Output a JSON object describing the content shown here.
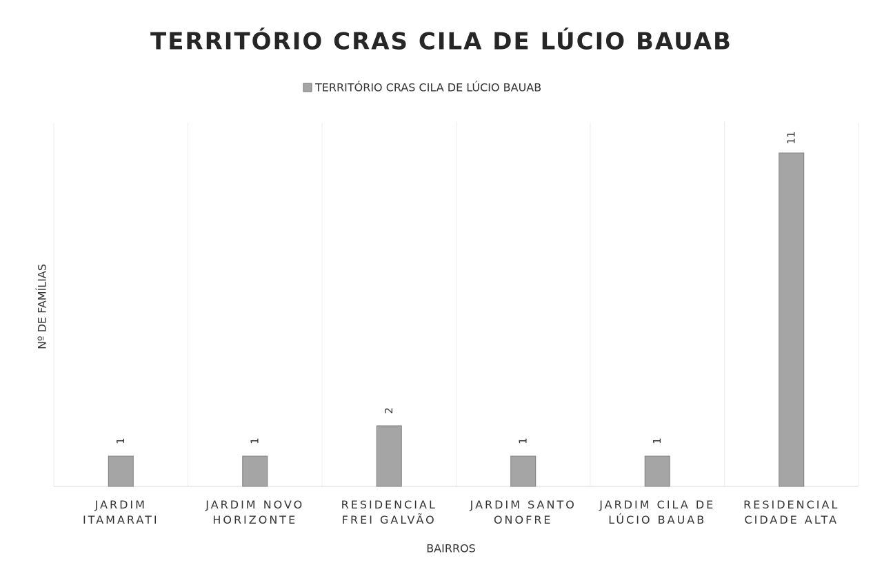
{
  "chart_data": {
    "type": "bar",
    "title": "TERRITÓRIO CRAS CILA DE LÚCIO BAUAB",
    "x_label": "BAIRROS",
    "y_label": "Nº DE FAMÍLIAS",
    "categories": [
      "JARDIM ITAMARATI",
      "JARDIM NOVO HORIZONTE",
      "RESIDENCIAL FREI GALVÃO",
      "JARDIM SANTO ONOFRE",
      "JARDIM CILA DE LÚCIO BAUAB",
      "RESIDENCIAL CIDADE ALTA"
    ],
    "series": [
      {
        "name": "TERRITÓRIO CRAS CILA DE LÚCIO BAUAB",
        "color": "#a5a5a5",
        "values": [
          1,
          1,
          2,
          1,
          1,
          11
        ]
      }
    ],
    "ylim": [
      0,
      12
    ],
    "legend": "top"
  }
}
